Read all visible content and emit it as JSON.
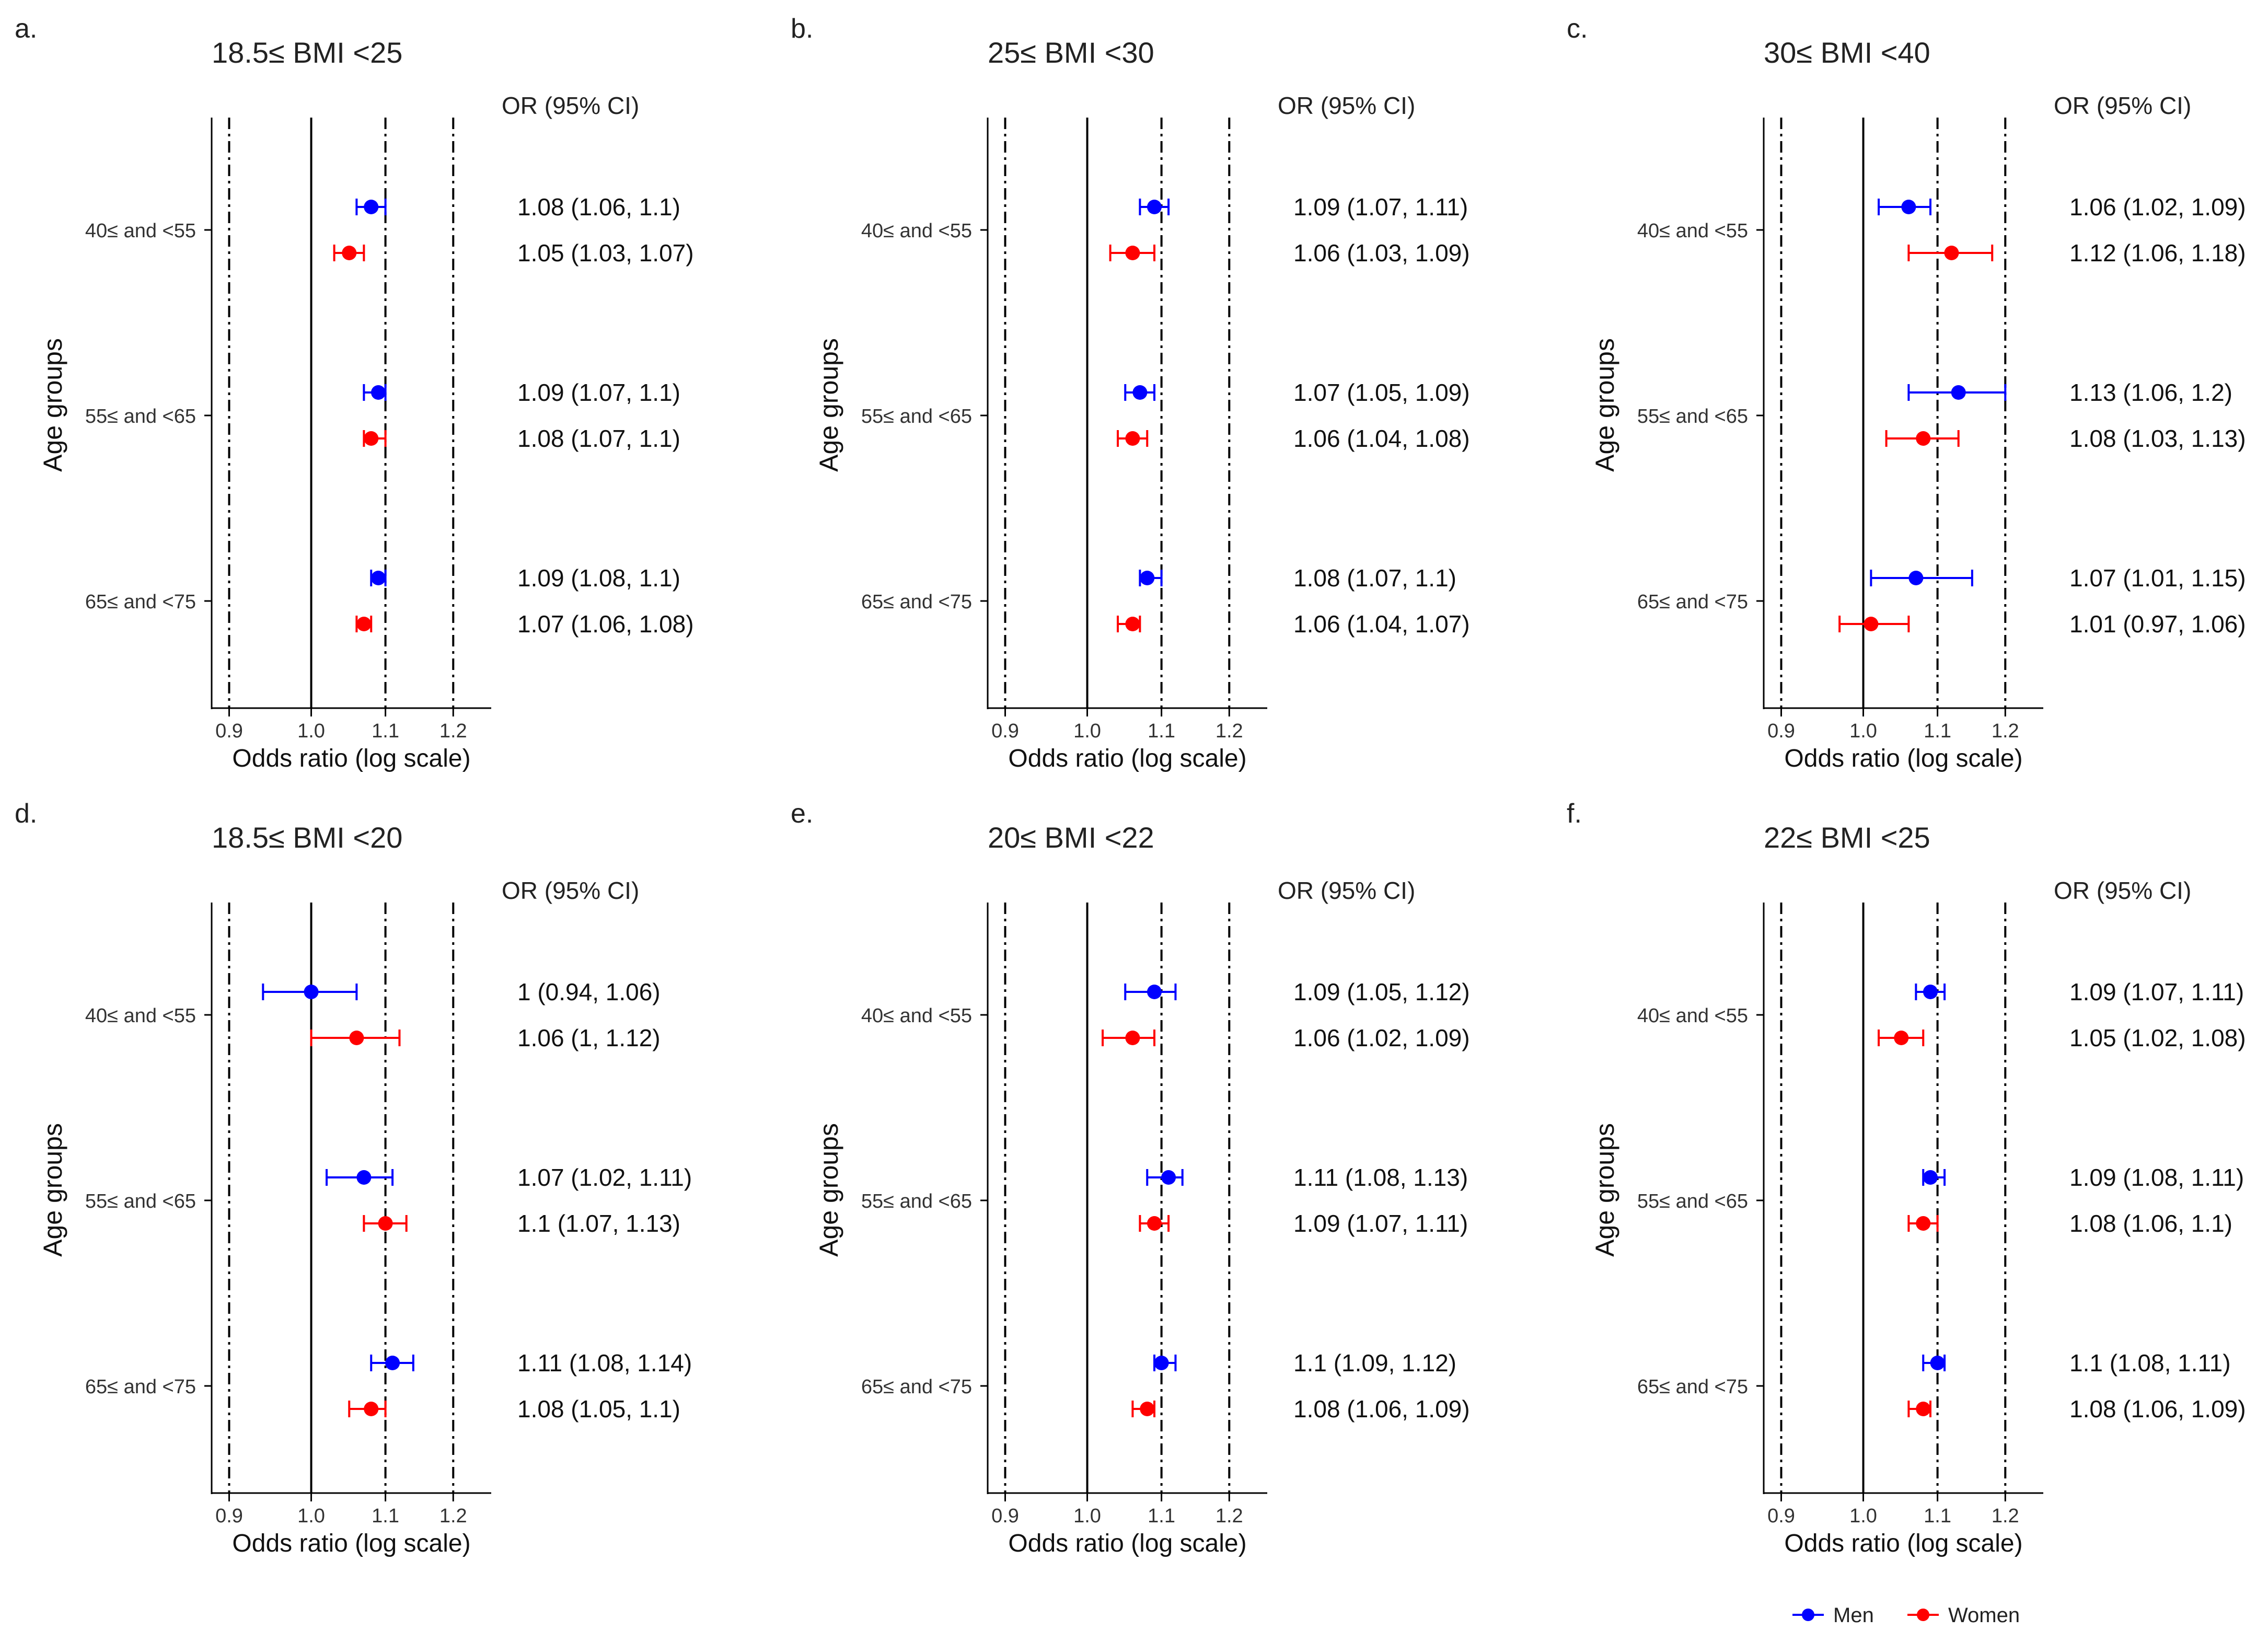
{
  "colors": {
    "men": "#0000FF",
    "women": "#FF0000",
    "axis": "#000000",
    "ref": "#000000"
  },
  "legend": {
    "men": "Men",
    "women": "Women"
  },
  "chart_data": [
    {
      "type": "forest",
      "letter": "a.",
      "title": "18.5≤ BMI <25",
      "xlabel": "Odds ratio (log scale)",
      "ylabel": "Age groups",
      "xticks": [
        "0.9",
        "1.0",
        "1.1",
        "1.2"
      ],
      "xlim": [
        0.88,
        1.26
      ],
      "ref_lines": [
        0.9,
        1.0,
        1.1,
        1.2
      ],
      "or_header": "OR (95% CI)",
      "groups": [
        {
          "label": "40≤ and <55",
          "men": {
            "or": 1.08,
            "lo": 1.06,
            "hi": 1.1,
            "text": "1.08 (1.06, 1.1)"
          },
          "women": {
            "or": 1.05,
            "lo": 1.03,
            "hi": 1.07,
            "text": "1.05 (1.03, 1.07)"
          }
        },
        {
          "label": "55≤ and <65",
          "men": {
            "or": 1.09,
            "lo": 1.07,
            "hi": 1.1,
            "text": "1.09 (1.07, 1.1)"
          },
          "women": {
            "or": 1.08,
            "lo": 1.07,
            "hi": 1.1,
            "text": "1.08 (1.07, 1.1)"
          }
        },
        {
          "label": "65≤ and <75",
          "men": {
            "or": 1.09,
            "lo": 1.08,
            "hi": 1.1,
            "text": "1.09 (1.08, 1.1)"
          },
          "women": {
            "or": 1.07,
            "lo": 1.06,
            "hi": 1.08,
            "text": "1.07 (1.06, 1.08)"
          }
        }
      ]
    },
    {
      "type": "forest",
      "letter": "b.",
      "title": "25≤ BMI <30",
      "xlabel": "Odds ratio (log scale)",
      "ylabel": "Age groups",
      "xticks": [
        "0.9",
        "1.0",
        "1.1",
        "1.2"
      ],
      "xlim": [
        0.88,
        1.26
      ],
      "ref_lines": [
        0.9,
        1.0,
        1.1,
        1.2
      ],
      "or_header": "OR (95% CI)",
      "groups": [
        {
          "label": "40≤ and <55",
          "men": {
            "or": 1.09,
            "lo": 1.07,
            "hi": 1.11,
            "text": "1.09 (1.07, 1.11)"
          },
          "women": {
            "or": 1.06,
            "lo": 1.03,
            "hi": 1.09,
            "text": "1.06 (1.03, 1.09)"
          }
        },
        {
          "label": "55≤ and <65",
          "men": {
            "or": 1.07,
            "lo": 1.05,
            "hi": 1.09,
            "text": "1.07 (1.05, 1.09)"
          },
          "women": {
            "or": 1.06,
            "lo": 1.04,
            "hi": 1.08,
            "text": "1.06 (1.04, 1.08)"
          }
        },
        {
          "label": "65≤ and <75",
          "men": {
            "or": 1.08,
            "lo": 1.07,
            "hi": 1.1,
            "text": "1.08 (1.07, 1.1)"
          },
          "women": {
            "or": 1.06,
            "lo": 1.04,
            "hi": 1.07,
            "text": "1.06 (1.04, 1.07)"
          }
        }
      ]
    },
    {
      "type": "forest",
      "letter": "c.",
      "title": "30≤ BMI <40",
      "xlabel": "Odds ratio (log scale)",
      "ylabel": "Age groups",
      "xticks": [
        "0.9",
        "1.0",
        "1.1",
        "1.2"
      ],
      "xlim": [
        0.88,
        1.26
      ],
      "ref_lines": [
        0.9,
        1.0,
        1.1,
        1.2
      ],
      "or_header": "OR (95% CI)",
      "groups": [
        {
          "label": "40≤ and <55",
          "men": {
            "or": 1.06,
            "lo": 1.02,
            "hi": 1.09,
            "text": "1.06 (1.02, 1.09)"
          },
          "women": {
            "or": 1.12,
            "lo": 1.06,
            "hi": 1.18,
            "text": "1.12 (1.06, 1.18)"
          }
        },
        {
          "label": "55≤ and <65",
          "men": {
            "or": 1.13,
            "lo": 1.06,
            "hi": 1.2,
            "text": "1.13 (1.06, 1.2)"
          },
          "women": {
            "or": 1.08,
            "lo": 1.03,
            "hi": 1.13,
            "text": "1.08 (1.03, 1.13)"
          }
        },
        {
          "label": "65≤ and <75",
          "men": {
            "or": 1.07,
            "lo": 1.01,
            "hi": 1.15,
            "text": "1.07 (1.01, 1.15)"
          },
          "women": {
            "or": 1.01,
            "lo": 0.97,
            "hi": 1.06,
            "text": "1.01 (0.97, 1.06)"
          }
        }
      ]
    },
    {
      "type": "forest",
      "letter": "d.",
      "title": "18.5≤ BMI <20",
      "xlabel": "Odds ratio (log scale)",
      "ylabel": "Age groups",
      "xticks": [
        "0.9",
        "1.0",
        "1.1",
        "1.2"
      ],
      "xlim": [
        0.88,
        1.26
      ],
      "ref_lines": [
        0.9,
        1.0,
        1.1,
        1.2
      ],
      "or_header": "OR (95% CI)",
      "groups": [
        {
          "label": "40≤ and <55",
          "men": {
            "or": 1.0,
            "lo": 0.94,
            "hi": 1.06,
            "text": "1 (0.94, 1.06)"
          },
          "women": {
            "or": 1.06,
            "lo": 1.0,
            "hi": 1.12,
            "text": "1.06 (1, 1.12)"
          }
        },
        {
          "label": "55≤ and <65",
          "men": {
            "or": 1.07,
            "lo": 1.02,
            "hi": 1.11,
            "text": "1.07 (1.02, 1.11)"
          },
          "women": {
            "or": 1.1,
            "lo": 1.07,
            "hi": 1.13,
            "text": "1.1 (1.07, 1.13)"
          }
        },
        {
          "label": "65≤ and <75",
          "men": {
            "or": 1.11,
            "lo": 1.08,
            "hi": 1.14,
            "text": "1.11 (1.08, 1.14)"
          },
          "women": {
            "or": 1.08,
            "lo": 1.05,
            "hi": 1.1,
            "text": "1.08 (1.05, 1.1)"
          }
        }
      ]
    },
    {
      "type": "forest",
      "letter": "e.",
      "title": "20≤ BMI <22",
      "xlabel": "Odds ratio (log scale)",
      "ylabel": "Age groups",
      "xticks": [
        "0.9",
        "1.0",
        "1.1",
        "1.2"
      ],
      "xlim": [
        0.88,
        1.26
      ],
      "ref_lines": [
        0.9,
        1.0,
        1.1,
        1.2
      ],
      "or_header": "OR (95% CI)",
      "groups": [
        {
          "label": "40≤ and <55",
          "men": {
            "or": 1.09,
            "lo": 1.05,
            "hi": 1.12,
            "text": "1.09 (1.05, 1.12)"
          },
          "women": {
            "or": 1.06,
            "lo": 1.02,
            "hi": 1.09,
            "text": "1.06 (1.02, 1.09)"
          }
        },
        {
          "label": "55≤ and <65",
          "men": {
            "or": 1.11,
            "lo": 1.08,
            "hi": 1.13,
            "text": "1.11 (1.08, 1.13)"
          },
          "women": {
            "or": 1.09,
            "lo": 1.07,
            "hi": 1.11,
            "text": "1.09 (1.07, 1.11)"
          }
        },
        {
          "label": "65≤ and <75",
          "men": {
            "or": 1.1,
            "lo": 1.09,
            "hi": 1.12,
            "text": "1.1 (1.09, 1.12)"
          },
          "women": {
            "or": 1.08,
            "lo": 1.06,
            "hi": 1.09,
            "text": "1.08 (1.06, 1.09)"
          }
        }
      ]
    },
    {
      "type": "forest",
      "letter": "f.",
      "title": "22≤ BMI <25",
      "xlabel": "Odds ratio (log scale)",
      "ylabel": "Age groups",
      "xticks": [
        "0.9",
        "1.0",
        "1.1",
        "1.2"
      ],
      "xlim": [
        0.88,
        1.26
      ],
      "ref_lines": [
        0.9,
        1.0,
        1.1,
        1.2
      ],
      "or_header": "OR (95% CI)",
      "groups": [
        {
          "label": "40≤ and <55",
          "men": {
            "or": 1.09,
            "lo": 1.07,
            "hi": 1.11,
            "text": "1.09 (1.07, 1.11)"
          },
          "women": {
            "or": 1.05,
            "lo": 1.02,
            "hi": 1.08,
            "text": "1.05 (1.02, 1.08)"
          }
        },
        {
          "label": "55≤ and <65",
          "men": {
            "or": 1.09,
            "lo": 1.08,
            "hi": 1.11,
            "text": "1.09 (1.08, 1.11)"
          },
          "women": {
            "or": 1.08,
            "lo": 1.06,
            "hi": 1.1,
            "text": "1.08 (1.06, 1.1)"
          }
        },
        {
          "label": "65≤ and <75",
          "men": {
            "or": 1.1,
            "lo": 1.08,
            "hi": 1.11,
            "text": "1.1 (1.08, 1.11)"
          },
          "women": {
            "or": 1.08,
            "lo": 1.06,
            "hi": 1.09,
            "text": "1.08 (1.06, 1.09)"
          }
        }
      ]
    }
  ]
}
